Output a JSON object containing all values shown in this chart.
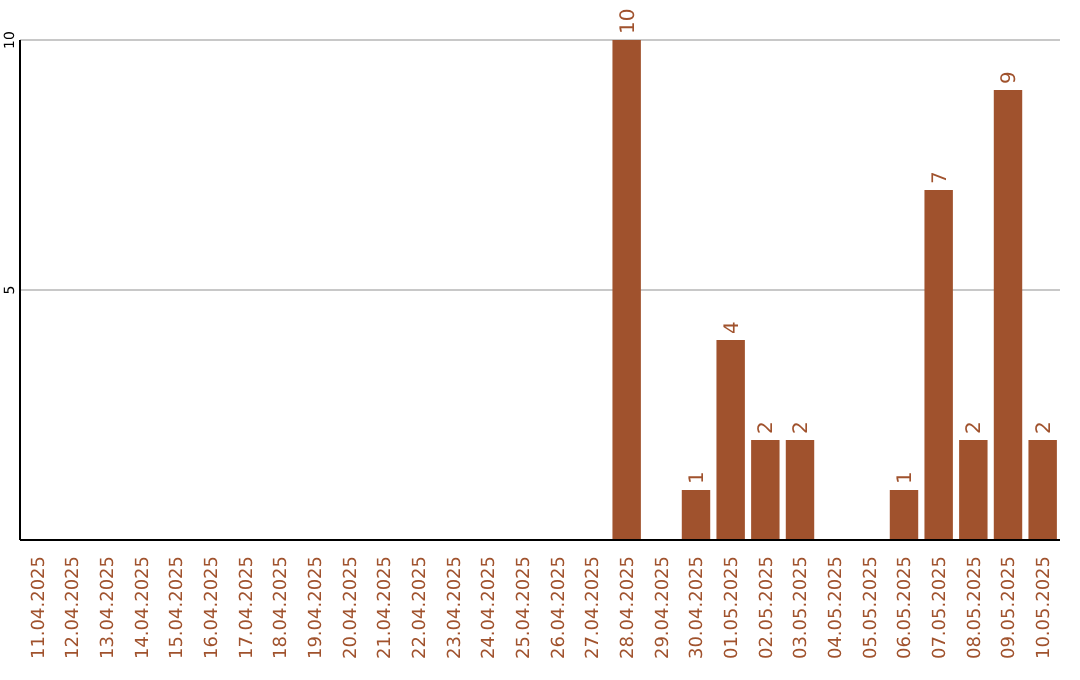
{
  "chart_data": {
    "type": "bar",
    "categories": [
      "11.04.2025",
      "12.04.2025",
      "13.04.2025",
      "14.04.2025",
      "15.04.2025",
      "16.04.2025",
      "17.04.2025",
      "18.04.2025",
      "19.04.2025",
      "20.04.2025",
      "21.04.2025",
      "22.04.2025",
      "23.04.2025",
      "24.04.2025",
      "25.04.2025",
      "26.04.2025",
      "27.04.2025",
      "28.04.2025",
      "29.04.2025",
      "30.04.2025",
      "01.05.2025",
      "02.05.2025",
      "03.05.2025",
      "04.05.2025",
      "05.05.2025",
      "06.05.2025",
      "07.05.2025",
      "08.05.2025",
      "09.05.2025",
      "10.05.2025"
    ],
    "values": [
      0,
      0,
      0,
      0,
      0,
      0,
      0,
      0,
      0,
      0,
      0,
      0,
      0,
      0,
      0,
      0,
      0,
      10,
      0,
      1,
      4,
      2,
      2,
      0,
      0,
      1,
      7,
      2,
      9,
      2
    ],
    "value_labels": [
      null,
      null,
      null,
      null,
      null,
      null,
      null,
      null,
      null,
      null,
      null,
      null,
      null,
      null,
      null,
      null,
      null,
      "10",
      null,
      "1",
      "4",
      "2",
      "2",
      null,
      null,
      "1",
      "7",
      "2",
      "9",
      "2"
    ],
    "color": "#a0522d",
    "ylim": [
      0,
      10
    ],
    "yticks": [
      5,
      10
    ],
    "grid": "y"
  }
}
